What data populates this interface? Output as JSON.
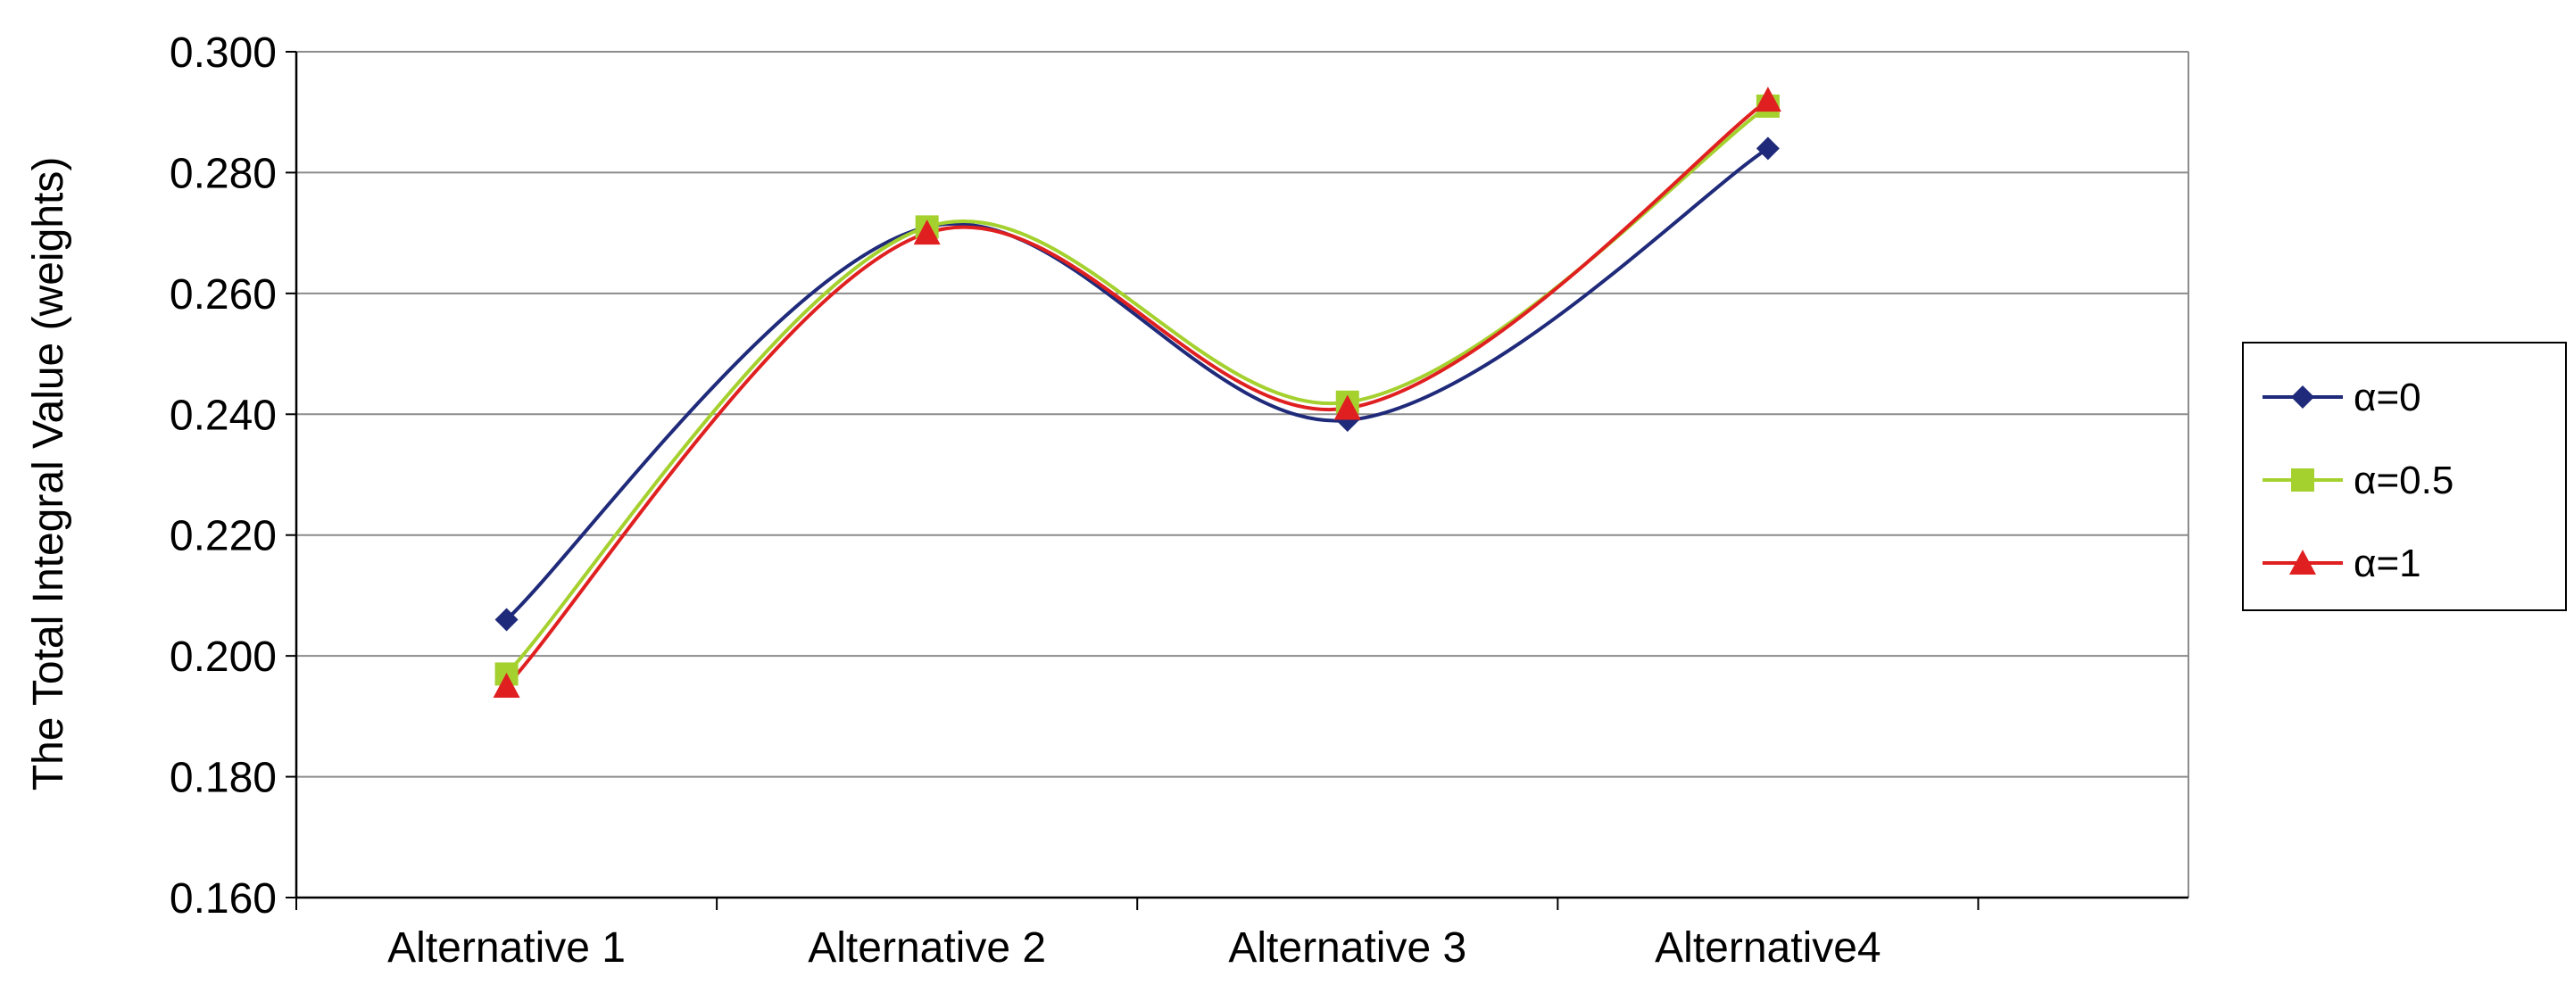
{
  "chart_data": {
    "type": "line",
    "title": "",
    "xlabel": "",
    "ylabel": "The Total Integral Value (weights)",
    "categories": [
      "Alternative 1",
      "Alternative 2",
      "Alternative 3",
      "Alternative4"
    ],
    "ylim": [
      0.16,
      0.3
    ],
    "yticks": [
      0.16,
      0.18,
      0.2,
      0.22,
      0.24,
      0.26,
      0.28,
      0.3
    ],
    "ytick_labels": [
      "0.160",
      "0.180",
      "0.200",
      "0.220",
      "0.240",
      "0.260",
      "0.280",
      "0.300"
    ],
    "grid": true,
    "smoothed": true,
    "legend_position": "right",
    "series": [
      {
        "name": "α=0",
        "values": [
          0.206,
          0.271,
          0.239,
          0.284
        ],
        "color": "#1f2a7a",
        "marker": "diamond"
      },
      {
        "name": "α=0.5",
        "values": [
          0.197,
          0.271,
          0.242,
          0.291
        ],
        "color": "#a5d12f",
        "marker": "square"
      },
      {
        "name": "α=1",
        "values": [
          0.195,
          0.27,
          0.241,
          0.292
        ],
        "color": "#e02020",
        "marker": "triangle"
      }
    ]
  }
}
